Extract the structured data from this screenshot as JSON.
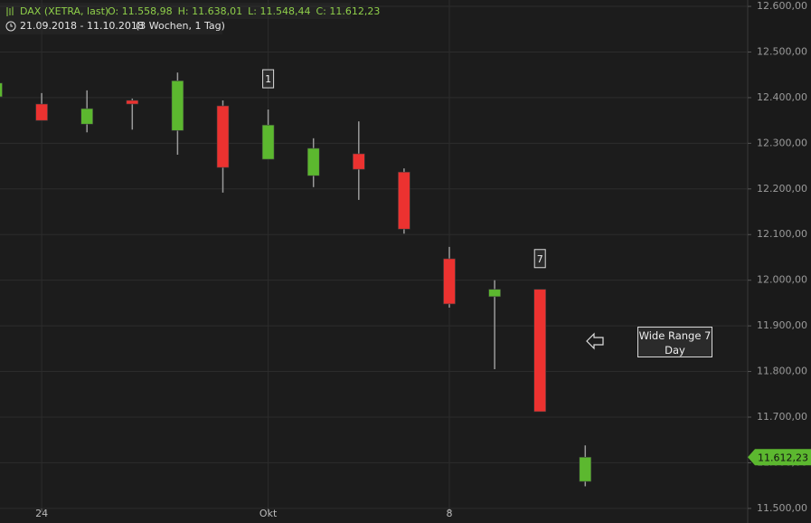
{
  "chart_data": {
    "type": "candlestick",
    "header": {
      "title": "DAX (XETRA, last)",
      "ohlc": [
        "O: 11.558,98",
        "H: 11.638,01",
        "L: 11.548,44",
        "C: 11.612,23"
      ],
      "range": "21.09.2018 - 11.10.2018",
      "duration": "(3 Wochen, 1 Tag)"
    },
    "categories": [
      null,
      "24",
      null,
      null,
      null,
      null,
      "Okt",
      null,
      null,
      null,
      "8",
      null,
      null,
      null
    ],
    "open": [
      12402,
      12386,
      12342,
      12394,
      12328,
      12382,
      12265,
      12229,
      12277,
      12237,
      12047,
      11964,
      11980,
      11558.98
    ],
    "high": [
      12432,
      12410,
      12416,
      12398,
      12455,
      12394,
      12374,
      12311,
      12348,
      12245,
      12073,
      12000,
      11980,
      11638.01
    ],
    "low": [
      12402,
      12350,
      12324,
      12330,
      12275,
      12192,
      12265,
      12204,
      12176,
      12102,
      11940,
      11805,
      11712,
      11548.44
    ],
    "close": [
      12432,
      12350,
      12376,
      12386,
      12437,
      12247,
      12340,
      12289,
      12243,
      12112,
      11948,
      11980,
      11712,
      11612.23
    ],
    "up_color": "#5cb82f",
    "down_color": "#ec3230",
    "ylim": [
      11468,
      12614
    ],
    "yticks": [
      {
        "value": 11500,
        "label": "11.500,00"
      },
      {
        "value": 11600,
        "label": "11.600,00"
      },
      {
        "value": 11700,
        "label": "11.700,00"
      },
      {
        "value": 11800,
        "label": "11.800,00"
      },
      {
        "value": 11900,
        "label": "11.900,00"
      },
      {
        "value": 12000,
        "label": "12.000,00"
      },
      {
        "value": 12100,
        "label": "12.100,00"
      },
      {
        "value": 12200,
        "label": "12.200,00"
      },
      {
        "value": 12300,
        "label": "12.300,00"
      },
      {
        "value": 12400,
        "label": "12.400,00"
      },
      {
        "value": 12500,
        "label": "12.500,00"
      },
      {
        "value": 12600,
        "label": "12.600,00"
      }
    ],
    "grid": true,
    "last_price": {
      "value": 11612.23,
      "label": "11.612,23"
    },
    "annotations": [
      "1",
      "7",
      "Wide Range 7 Day"
    ]
  }
}
